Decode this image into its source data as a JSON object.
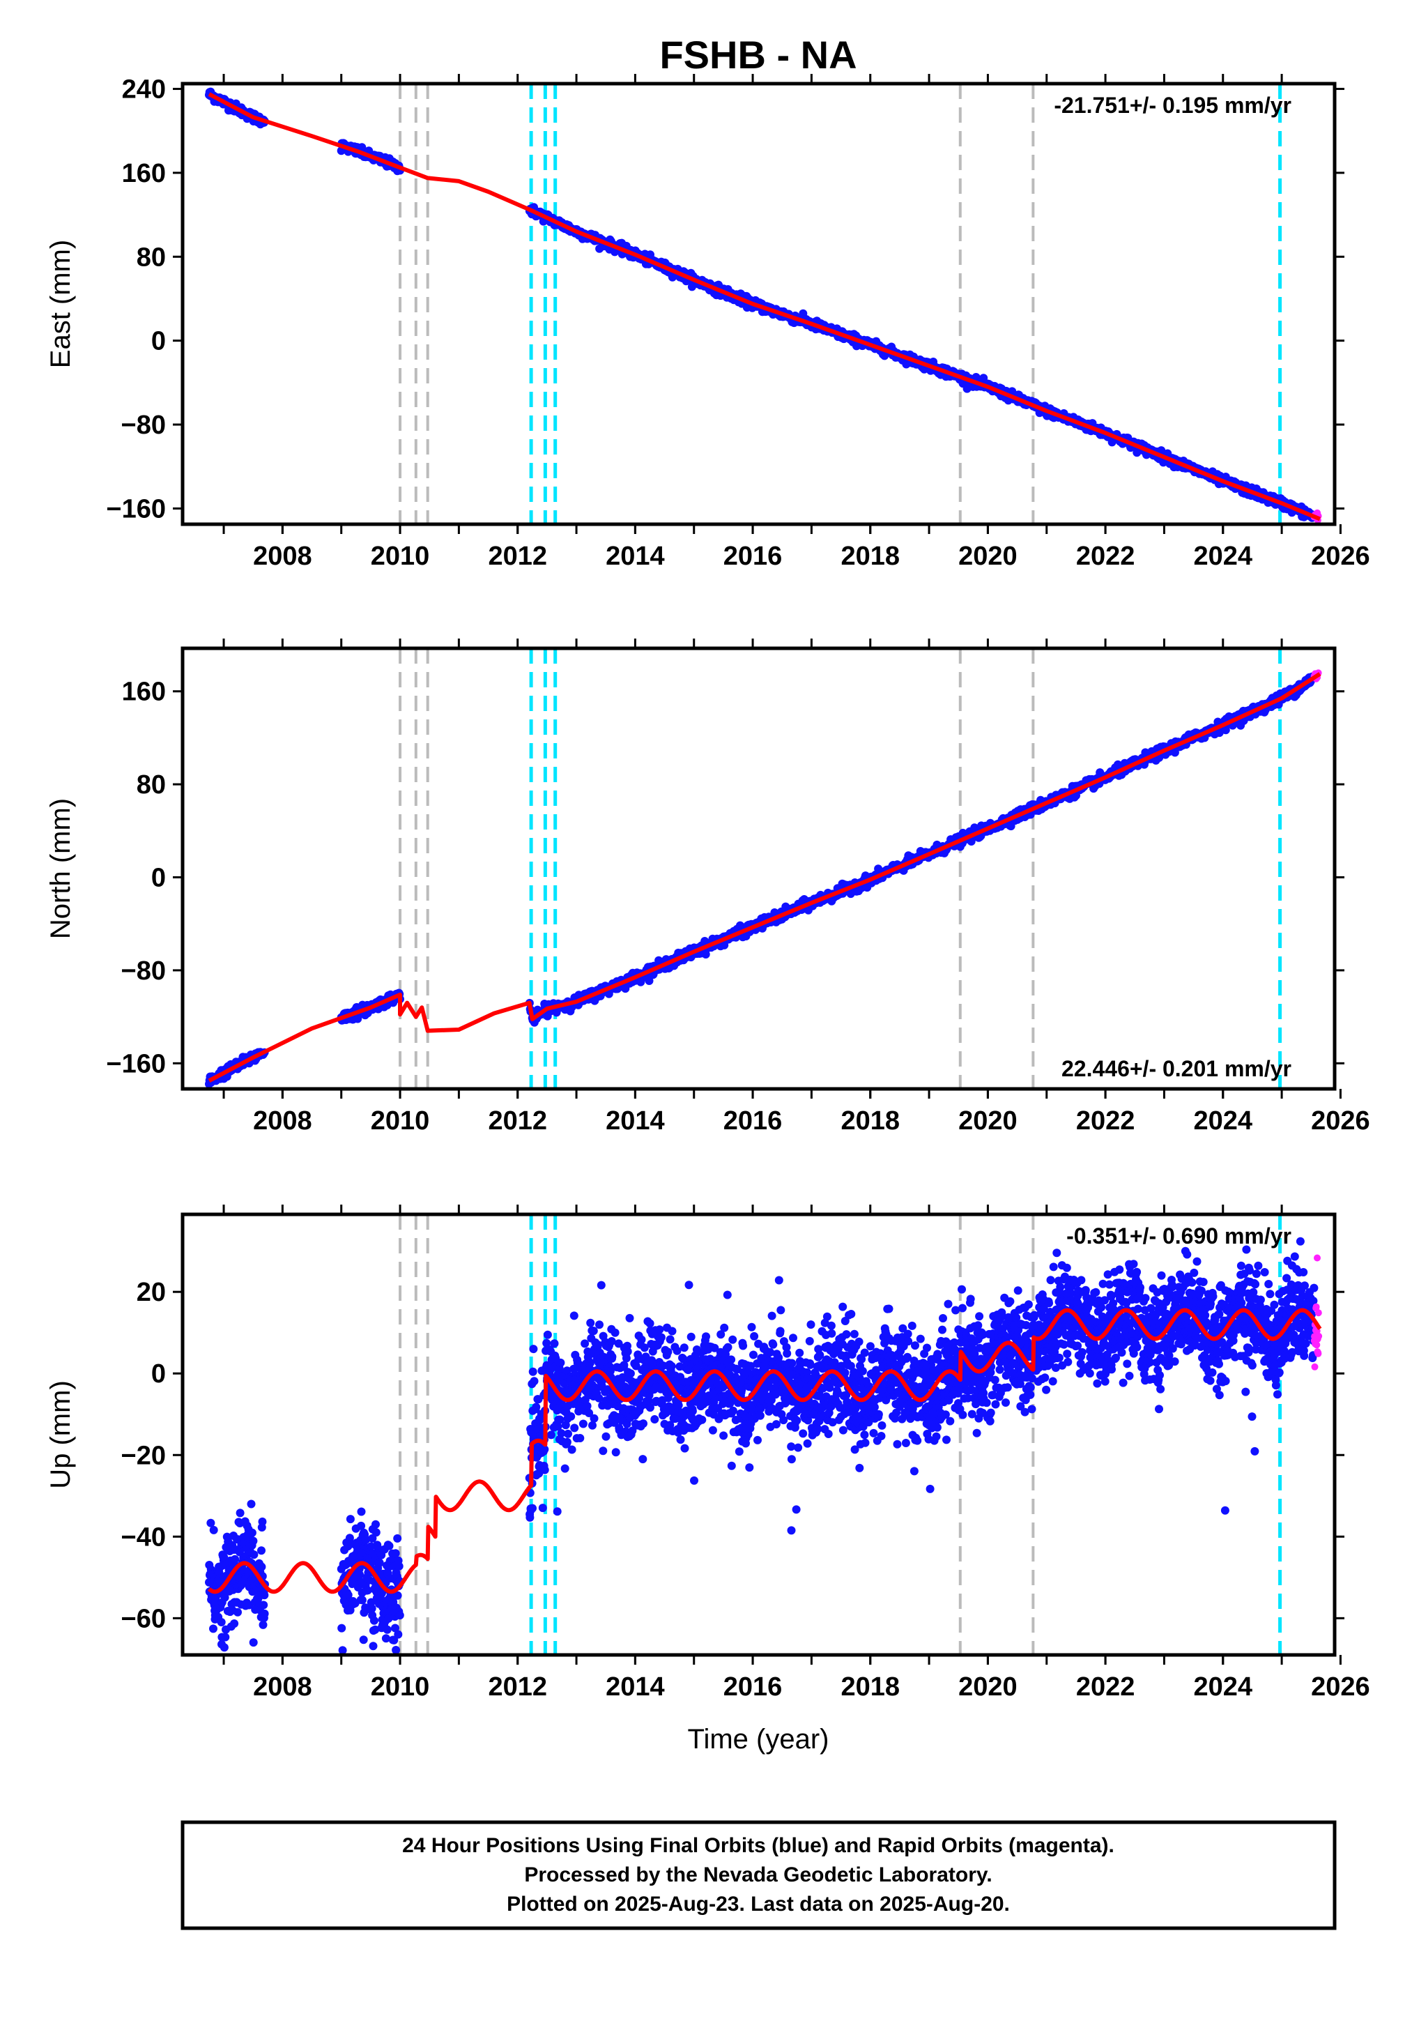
{
  "chart_data": {
    "type": "scatter",
    "title": "FSHB - NA",
    "x_tick_labels": [
      "2008",
      "2010",
      "2012",
      "2014",
      "2016",
      "2018",
      "2020",
      "2022",
      "2024",
      "2026"
    ],
    "xlim": [
      2006.3,
      2025.9
    ],
    "xlabel": "Time (year)",
    "colors": {
      "final_orbits": "#1010ff",
      "rapid_orbits": "#ff20ff",
      "model": "#ff0000",
      "equipment_change": "#bbbbbb",
      "earthquake": "#00e5ff"
    },
    "vertical_lines": {
      "gray": [
        2010.0,
        2010.27,
        2010.47,
        2019.53,
        2020.77
      ],
      "cyan": [
        2012.23,
        2012.47,
        2012.64,
        2024.97
      ]
    },
    "panels": [
      {
        "id": "east",
        "ylabel": "East (mm)",
        "ylim": [
          -175,
          245
        ],
        "y_ticks": [
          240,
          160,
          80,
          0,
          -80,
          -160
        ],
        "y_tick_labels": [
          "240",
          "160",
          "80",
          "0",
          "−80",
          "−160"
        ],
        "rate_label": "-21.751+/- 0.195 mm/yr",
        "rate_position": "top-right",
        "model": [
          [
            2006.75,
            235
          ],
          [
            2007.5,
            213
          ],
          [
            2008.5,
            195
          ],
          [
            2009.3,
            180
          ],
          [
            2010.0,
            165
          ],
          [
            2010.47,
            155
          ],
          [
            2011.0,
            152
          ],
          [
            2011.5,
            142
          ],
          [
            2012.2,
            125
          ],
          [
            2013,
            104
          ],
          [
            2014,
            82
          ],
          [
            2015,
            58
          ],
          [
            2016,
            35
          ],
          [
            2017,
            16
          ],
          [
            2018,
            -4
          ],
          [
            2019,
            -24
          ],
          [
            2020,
            -44
          ],
          [
            2021,
            -67
          ],
          [
            2022,
            -88
          ],
          [
            2023,
            -111
          ],
          [
            2024,
            -134
          ],
          [
            2025,
            -155
          ],
          [
            2025.65,
            -170
          ]
        ]
      },
      {
        "id": "north",
        "ylabel": "North (mm)",
        "ylim": [
          -182,
          197
        ],
        "y_ticks": [
          160,
          80,
          0,
          -80,
          -160
        ],
        "y_tick_labels": [
          "160",
          "80",
          "0",
          "−80",
          "−160"
        ],
        "rate_label": "22.446+/- 0.201 mm/yr",
        "rate_position": "bottom-right",
        "model": [
          [
            2006.75,
            -175
          ],
          [
            2007.5,
            -155
          ],
          [
            2008.5,
            -130
          ],
          [
            2009.5,
            -112
          ],
          [
            2010.0,
            -101
          ],
          [
            2010.0,
            -118
          ],
          [
            2010.12,
            -108
          ],
          [
            2010.27,
            -120
          ],
          [
            2010.37,
            -112
          ],
          [
            2010.47,
            -132
          ],
          [
            2011.0,
            -131
          ],
          [
            2011.6,
            -117
          ],
          [
            2012.2,
            -108
          ],
          [
            2012.25,
            -122
          ],
          [
            2012.5,
            -113
          ],
          [
            2013,
            -107
          ],
          [
            2014,
            -86
          ],
          [
            2015,
            -64
          ],
          [
            2016,
            -43
          ],
          [
            2017,
            -22
          ],
          [
            2018,
            -2
          ],
          [
            2019,
            20
          ],
          [
            2020,
            42
          ],
          [
            2021,
            64
          ],
          [
            2022,
            86
          ],
          [
            2023,
            109
          ],
          [
            2024,
            131
          ],
          [
            2025,
            154
          ],
          [
            2025.65,
            175
          ]
        ]
      },
      {
        "id": "up",
        "ylabel": "Up (mm)",
        "ylim": [
          -69,
          39
        ],
        "y_ticks": [
          20,
          0,
          -20,
          -40,
          -60
        ],
        "y_tick_labels": [
          "20",
          "0",
          "−20",
          "−40",
          "−60"
        ],
        "rate_label": "-0.351+/- 0.690 mm/yr",
        "rate_position": "top-right",
        "model_offsets": [
          [
            2006.3,
            -50
          ],
          [
            2010.27,
            -48
          ],
          [
            2010.47,
            -40
          ],
          [
            2010.6,
            -30
          ],
          [
            2012.23,
            -20
          ],
          [
            2012.47,
            -3
          ],
          [
            2019.53,
            4
          ],
          [
            2020.77,
            12
          ],
          [
            2025.9,
            11
          ]
        ],
        "model_annual_amplitude_mm": 3.5,
        "scatter_std_mm": 6
      }
    ],
    "rapid_orbits_start": 2025.55,
    "data_gaps": [
      [
        2007.7,
        2009.0
      ],
      [
        2010.0,
        2012.2
      ]
    ],
    "footer": [
      "24 Hour Positions Using Final Orbits (blue) and Rapid Orbits (magenta).",
      "Processed by the Nevada Geodetic Laboratory.",
      "Plotted on 2025-Aug-23. Last data on 2025-Aug-20."
    ]
  }
}
